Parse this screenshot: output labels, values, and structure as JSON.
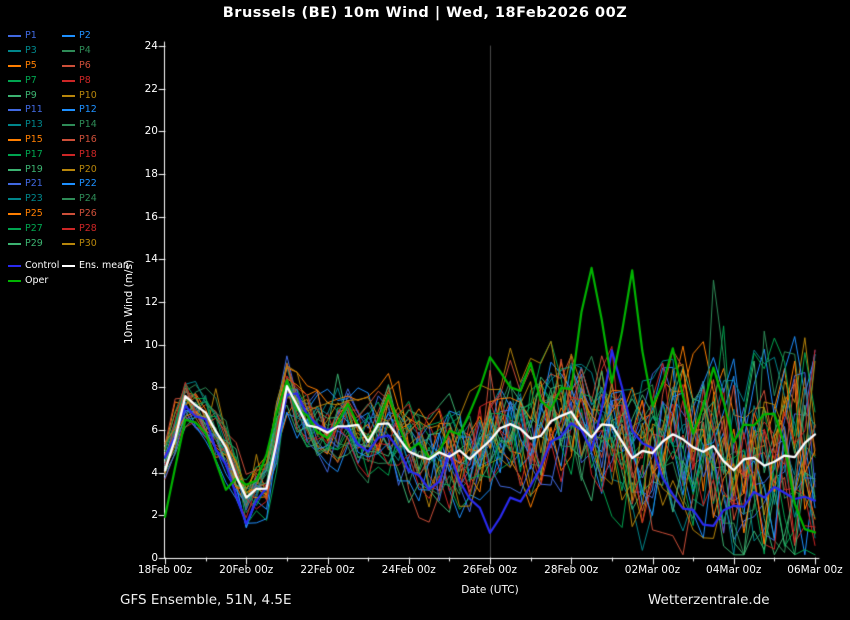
{
  "title": "Brussels  (BE)  10m Wind | Wed, 18Feb2026 00Z",
  "footer": {
    "left": "GFS Ensemble, 51N, 4.5E",
    "right": "Wetterzentrale.de"
  },
  "legend": {
    "control_label": "Control",
    "ens_mean_label": "Ens. mean",
    "oper_label": "Oper"
  },
  "chart_data": {
    "type": "line",
    "title": "Brussels  (BE)  10m Wind | Wed, 18Feb2026 00Z",
    "xlabel": "Date (UTC)",
    "ylabel": "10m Wind (m/s)",
    "ylim": [
      0,
      24
    ],
    "y_tick_labels": [
      "0",
      "2",
      "4",
      "6",
      "8",
      "10",
      "12",
      "14",
      "16",
      "18",
      "20",
      "22",
      "24"
    ],
    "x_tick_labels": [
      "18Feb 00z",
      "20Feb 00z",
      "22Feb 00z",
      "24Feb 00z",
      "26Feb 00z",
      "28Feb 00z",
      "02Mar 00z",
      "04Mar 00z",
      "06Mar 00z"
    ],
    "time_step_hours": 12,
    "grid": false,
    "legend_position": "top-left",
    "vline_time_index": 16,
    "series": [
      {
        "name": "Ens. mean",
        "color": "#ffffff",
        "width": 2.3,
        "values": [
          4.4,
          7.3,
          6.8,
          5.2,
          2.8,
          3.4,
          7.9,
          6.4,
          6.0,
          6.3,
          5.6,
          6.5,
          5.2,
          4.6,
          5.0,
          4.6,
          5.4,
          6.2,
          5.4,
          6.6,
          6.9,
          5.9,
          6.3,
          4.7,
          4.8,
          5.9,
          5.4,
          5.0,
          4.3,
          4.8,
          4.4,
          4.7,
          5.7
        ]
      },
      {
        "name": "Control",
        "color": "#2a2af0",
        "width": 2.2,
        "values": [
          4.4,
          7.0,
          6.2,
          4.0,
          2.0,
          3.0,
          7.8,
          6.8,
          6.2,
          5.8,
          5.2,
          6.0,
          4.4,
          3.4,
          4.6,
          3.2,
          1.2,
          2.6,
          3.2,
          5.4,
          6.6,
          5.0,
          9.4,
          6.2,
          5.4,
          3.0,
          2.2,
          1.6,
          2.2,
          2.8,
          3.6,
          2.4,
          2.6
        ]
      },
      {
        "name": "Oper",
        "color": "#00b400",
        "width": 2.2,
        "values": [
          2.2,
          6.4,
          5.6,
          3.4,
          3.0,
          5.2,
          8.2,
          6.2,
          5.8,
          6.8,
          6.0,
          7.4,
          5.4,
          4.6,
          5.6,
          6.4,
          9.2,
          7.6,
          8.6,
          7.0,
          8.2,
          13.8,
          8.0,
          13.4,
          6.8,
          9.6,
          6.0,
          8.8,
          5.2,
          6.4,
          7.2,
          2.4,
          0.8
        ]
      }
    ],
    "members": [
      {
        "name": "P1",
        "color": "#4169e1"
      },
      {
        "name": "P2",
        "color": "#1e90ff"
      },
      {
        "name": "P3",
        "color": "#00868b"
      },
      {
        "name": "P4",
        "color": "#2e8b57"
      },
      {
        "name": "P5",
        "color": "#ff7f00"
      },
      {
        "name": "P6",
        "color": "#cd4f39"
      },
      {
        "name": "P7",
        "color": "#00a550"
      },
      {
        "name": "P8",
        "color": "#cd2626"
      },
      {
        "name": "P9",
        "color": "#3cb371"
      },
      {
        "name": "P10",
        "color": "#b8860b"
      },
      {
        "name": "P11",
        "color": "#4169e1"
      },
      {
        "name": "P12",
        "color": "#1e90ff"
      },
      {
        "name": "P13",
        "color": "#00868b"
      },
      {
        "name": "P14",
        "color": "#2e8b57"
      },
      {
        "name": "P15",
        "color": "#ff7f00"
      },
      {
        "name": "P16",
        "color": "#cd4f39"
      },
      {
        "name": "P17",
        "color": "#00a550"
      },
      {
        "name": "P18",
        "color": "#cd2626"
      },
      {
        "name": "P19",
        "color": "#3cb371"
      },
      {
        "name": "P20",
        "color": "#b8860b"
      },
      {
        "name": "P21",
        "color": "#4169e1"
      },
      {
        "name": "P22",
        "color": "#1e90ff"
      },
      {
        "name": "P23",
        "color": "#00868b"
      },
      {
        "name": "P24",
        "color": "#2e8b57"
      },
      {
        "name": "P25",
        "color": "#ff7f00"
      },
      {
        "name": "P26",
        "color": "#cd4f39"
      },
      {
        "name": "P27",
        "color": "#00a550"
      },
      {
        "name": "P28",
        "color": "#cd2626"
      },
      {
        "name": "P29",
        "color": "#3cb371"
      },
      {
        "name": "P30",
        "color": "#b8860b"
      }
    ]
  }
}
